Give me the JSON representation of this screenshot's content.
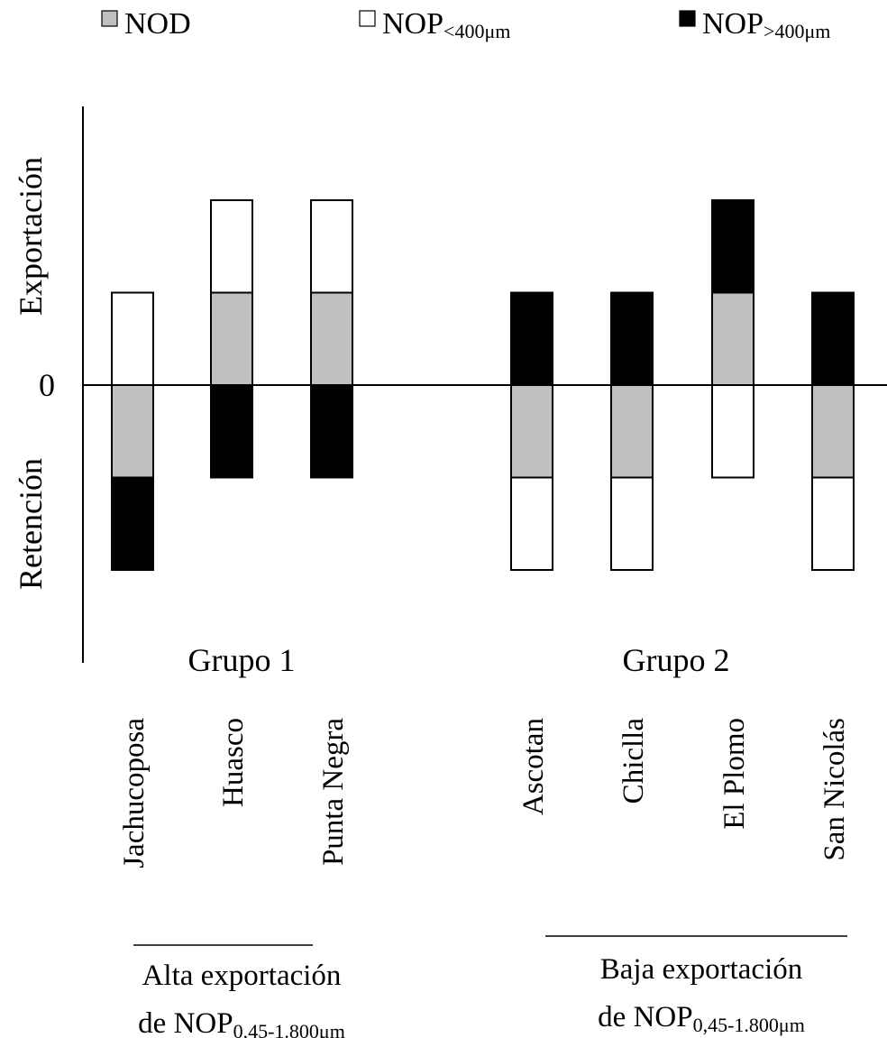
{
  "chart_data": {
    "type": "bar",
    "stacked": true,
    "diverging": true,
    "legend_position": "top",
    "legend": [
      {
        "key": "NOD",
        "base": "NOD",
        "sub": "",
        "color": "#c0c0c0",
        "icon": "gray-square-icon"
      },
      {
        "key": "NOP_lt400",
        "base": "NOP",
        "sub": "<400μm",
        "color": "#ffffff",
        "icon": "white-square-icon"
      },
      {
        "key": "NOP_gt400",
        "base": "NOP",
        "sub": ">400μm",
        "color": "#000000",
        "icon": "black-square-icon"
      }
    ],
    "ylabel_positive": "Exportación",
    "ylabel_negative": "Retención",
    "zero_label": "0",
    "ylim": [
      -2,
      3
    ],
    "categories": [
      "Jachucoposa",
      "Huasco",
      "Punta Negra",
      "Ascotan",
      "Chiclla",
      "El Plomo",
      "San Nicolás"
    ],
    "series": [
      {
        "name": "NOD",
        "values": [
          -1,
          1,
          1,
          -1,
          -1,
          1,
          -1
        ]
      },
      {
        "name": "NOP<400μm",
        "values": [
          1,
          1,
          1,
          -1,
          -1,
          -1,
          -1
        ]
      },
      {
        "name": "NOP>400μm",
        "values": [
          -1,
          -1,
          -1,
          1,
          1,
          1,
          1
        ]
      }
    ],
    "groups": [
      {
        "label": "Grupo 1",
        "categories": [
          "Jachucoposa",
          "Huasco",
          "Punta Negra"
        ],
        "subtitle": {
          "line1": "Alta exportación",
          "line2_prefix": "de NOP",
          "line2_sub": "0,45-1.800μm"
        }
      },
      {
        "label": "Grupo 2",
        "categories": [
          "Ascotan",
          "Chiclla",
          "El Plomo",
          "San Nicolás"
        ],
        "subtitle": {
          "line1": "Baja exportación",
          "line2_prefix": "de NOP",
          "line2_sub": "0,45-1.800μm"
        }
      }
    ]
  }
}
